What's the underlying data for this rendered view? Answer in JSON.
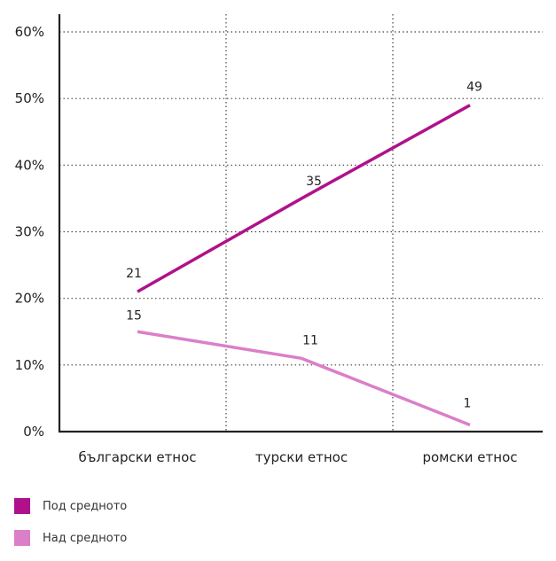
{
  "chart_data": {
    "type": "line",
    "categories": [
      "български етнос",
      "турски етнос",
      "ромски етнос"
    ],
    "series": [
      {
        "name": "Под средното",
        "values": [
          21,
          35,
          49
        ],
        "color": "#b0118a"
      },
      {
        "name": "Над средното",
        "values": [
          15,
          11,
          1
        ],
        "color": "#da7fc8"
      }
    ],
    "data_labels": [
      [
        "21",
        "35",
        "49"
      ],
      [
        "15",
        "11",
        "1"
      ]
    ],
    "ylim": [
      0,
      60
    ],
    "yticks": [
      0,
      10,
      20,
      30,
      40,
      50,
      60
    ],
    "ytick_labels": [
      "0%",
      "10%",
      "20%",
      "30%",
      "40%",
      "50%",
      "60%"
    ],
    "grid": "dotted",
    "legend_position": "bottom-left",
    "title": "",
    "xlabel": "",
    "ylabel": ""
  }
}
